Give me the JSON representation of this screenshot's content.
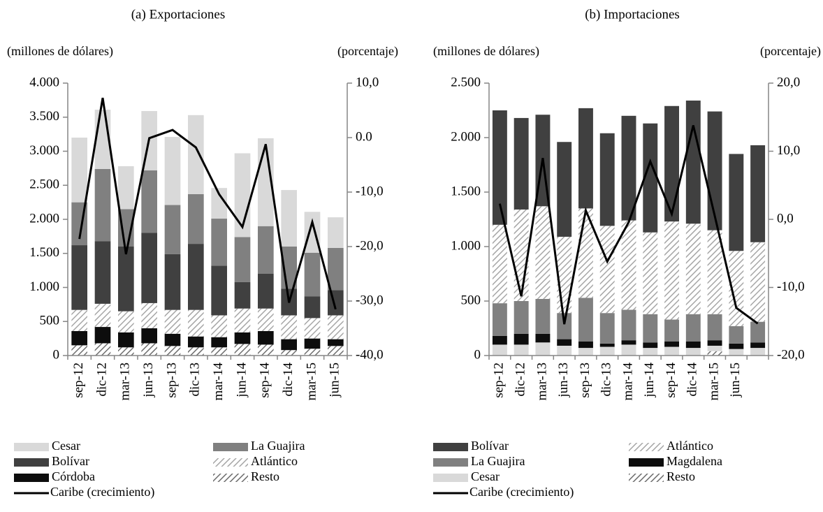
{
  "chart_data": [
    {
      "type": "bar",
      "stacked": true,
      "title": "(a) Exportaciones",
      "y_label": "(millones de dólares)",
      "y2_label": "(porcentaje)",
      "categories": [
        "sep-12",
        "dic-12",
        "mar-13",
        "jun-13",
        "sep-13",
        "dic-13",
        "mar-14",
        "jun-14",
        "sep-14",
        "dic-14",
        "mar-15",
        "jun-15"
      ],
      "ylim": [
        0,
        4000
      ],
      "yticks": [
        0,
        {
          "value": 500,
          "label": "500"
        },
        {
          "value": 1000,
          "label": "1.000"
        },
        {
          "value": 1500,
          "label": "1.500"
        },
        {
          "value": 2000,
          "label": "2.000"
        },
        {
          "value": 2500,
          "label": "2.500"
        },
        {
          "value": 3000,
          "label": "3.000"
        },
        {
          "value": 3500,
          "label": "3.500"
        },
        {
          "value": 4000,
          "label": "4.000"
        }
      ],
      "y2lim": [
        -40,
        10
      ],
      "y2ticks": [
        {
          "value": -40,
          "label": "-40,0"
        },
        {
          "value": -30,
          "label": "-30,0"
        },
        {
          "value": -20,
          "label": "-20,0"
        },
        {
          "value": -10,
          "label": "-10,0"
        },
        {
          "value": 0,
          "label": "0.0"
        },
        {
          "value": 10,
          "label": "10,0"
        }
      ],
      "series": [
        {
          "name": "Resto",
          "color": "#6e6e6e",
          "hatch": true,
          "values": [
            150,
            180,
            120,
            180,
            140,
            120,
            120,
            170,
            160,
            80,
            100,
            140
          ]
        },
        {
          "name": "Córdoba",
          "color": "#0d0d0d",
          "values": [
            210,
            240,
            220,
            220,
            180,
            160,
            150,
            170,
            200,
            160,
            150,
            100
          ]
        },
        {
          "name": "Atlántico",
          "color": "#a6a6a6",
          "hatch": true,
          "values": [
            310,
            340,
            310,
            370,
            350,
            390,
            320,
            350,
            330,
            350,
            300,
            350
          ]
        },
        {
          "name": "Bolívar",
          "color": "#404040",
          "values": [
            950,
            920,
            950,
            1030,
            820,
            970,
            730,
            390,
            510,
            390,
            320,
            370
          ]
        },
        {
          "name": "La Guajira",
          "color": "#808080",
          "values": [
            630,
            1060,
            550,
            920,
            720,
            730,
            690,
            660,
            700,
            620,
            640,
            620
          ]
        },
        {
          "name": "Cesar",
          "color": "#d9d9d9",
          "values": [
            950,
            870,
            630,
            870,
            1000,
            1160,
            450,
            1230,
            1290,
            830,
            600,
            450
          ]
        },
        {
          "name": "Caribe (crecimiento)",
          "type": "line",
          "axis": "y2",
          "color": "#000000",
          "values": [
            -18.6,
            7.3,
            -21.4,
            -0.1,
            1.4,
            -1.8,
            -10.4,
            -16.4,
            -1.2,
            -30.3,
            -15.5,
            -31.5
          ]
        }
      ]
    },
    {
      "type": "bar",
      "stacked": true,
      "title": "(b) Importaciones",
      "y_label": "(millones de dólares)",
      "y2_label": "(porcentaje)",
      "categories": [
        "sep-12",
        "dic-12",
        "mar-13",
        "jun-13",
        "sep-13",
        "dic-13",
        "mar-14",
        "jun-14",
        "sep-14",
        "dic-14",
        "mar-15",
        "jun-15",
        null
      ],
      "ylim": [
        0,
        2500
      ],
      "yticks": [
        0,
        {
          "value": 500,
          "label": "500"
        },
        {
          "value": 1000,
          "label": "1.000"
        },
        {
          "value": 1500,
          "label": "1.500"
        },
        {
          "value": 2000,
          "label": "2.000"
        },
        {
          "value": 2500,
          "label": "2.500"
        }
      ],
      "y2lim": [
        -20,
        20
      ],
      "y2ticks": [
        {
          "value": -20,
          "label": "-20,0"
        },
        {
          "value": -10,
          "label": "-10,0"
        },
        {
          "value": 0,
          "label": "0,0"
        },
        {
          "value": 10,
          "label": "10,0"
        },
        {
          "value": 20,
          "label": "20,0"
        }
      ],
      "series": [
        {
          "name": "Resto",
          "color": "#6e6e6e",
          "hatch": true,
          "values": [
            0,
            0,
            0,
            0,
            0,
            0,
            0,
            0,
            0,
            0,
            40,
            0,
            0
          ]
        },
        {
          "name": "Cesar",
          "color": "#d9d9d9",
          "values": [
            100,
            100,
            120,
            90,
            70,
            80,
            100,
            70,
            80,
            70,
            50,
            60,
            70
          ]
        },
        {
          "name": "Magdalena",
          "color": "#0d0d0d",
          "values": [
            80,
            100,
            80,
            60,
            60,
            30,
            40,
            50,
            50,
            60,
            50,
            50,
            50
          ]
        },
        {
          "name": "La Guajira",
          "color": "#808080",
          "values": [
            300,
            300,
            320,
            240,
            400,
            280,
            280,
            260,
            200,
            250,
            240,
            160,
            190
          ]
        },
        {
          "name": "Atlántico",
          "color": "#a6a6a6",
          "hatch": true,
          "values": [
            720,
            840,
            850,
            700,
            820,
            800,
            820,
            750,
            900,
            830,
            770,
            690,
            730
          ]
        },
        {
          "name": "Bolívar",
          "color": "#404040",
          "values": [
            1050,
            840,
            840,
            870,
            920,
            850,
            960,
            1000,
            1060,
            1130,
            1090,
            890,
            890
          ]
        },
        {
          "name": "Caribe (crecimiento)",
          "type": "line",
          "axis": "y2",
          "color": "#000000",
          "values": [
            2.3,
            -11.3,
            9.0,
            -15.4,
            1.3,
            -6.2,
            -0.4,
            8.5,
            0.8,
            13.8,
            0.5,
            -13.0,
            -15.3
          ]
        }
      ]
    }
  ]
}
